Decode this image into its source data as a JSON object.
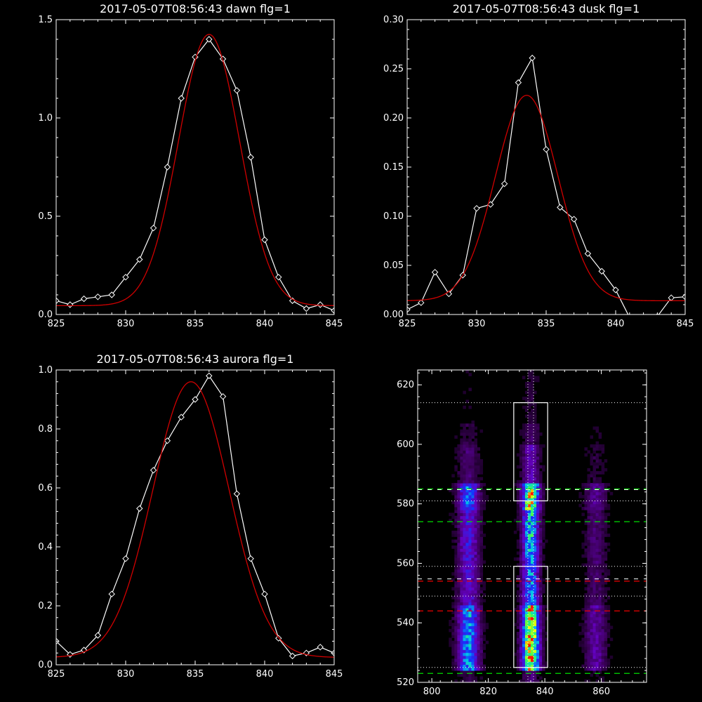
{
  "chart_data": [
    {
      "type": "line",
      "title": "2017-05-07T08:56:43 dawn flg=1",
      "xlim": [
        825,
        845
      ],
      "ylim": [
        0,
        1.5
      ],
      "xticks": [
        825,
        830,
        835,
        840,
        845
      ],
      "xtick_labels": [
        "825",
        "830",
        "835",
        "840",
        "845"
      ],
      "yticks": [
        0,
        0.5,
        1.0,
        1.5
      ],
      "ytick_labels": [
        "0.0",
        "0.5",
        "1.0",
        "1.5"
      ],
      "grid": false,
      "series": [
        {
          "color": "#ffffff",
          "marker": "diamond",
          "x": [
            825,
            826,
            827,
            828,
            829,
            830,
            831,
            832,
            833,
            834,
            835,
            836,
            837,
            838,
            839,
            840,
            841,
            842,
            843,
            844,
            845
          ],
          "y": [
            0.07,
            0.05,
            0.08,
            0.09,
            0.1,
            0.19,
            0.28,
            0.44,
            0.75,
            1.1,
            1.31,
            1.4,
            1.3,
            1.14,
            0.8,
            0.38,
            0.19,
            0.07,
            0.03,
            0.05,
            0.02
          ]
        },
        {
          "color": "#d00000",
          "style": "gaussian_fit",
          "amplitude": 1.38,
          "center": 836.0,
          "sigma": 2.2,
          "offset": 0.045
        }
      ]
    },
    {
      "type": "line",
      "title": "2017-05-07T08:56:43 dusk flg=1",
      "xlim": [
        825,
        845
      ],
      "ylim": [
        0,
        0.3
      ],
      "xticks": [
        825,
        830,
        835,
        840,
        845
      ],
      "xtick_labels": [
        "825",
        "830",
        "835",
        "840",
        "845"
      ],
      "yticks": [
        0,
        0.05,
        0.1,
        0.15,
        0.2,
        0.25,
        0.3
      ],
      "ytick_labels": [
        "0.00",
        "0.05",
        "0.10",
        "0.15",
        "0.20",
        "0.25",
        "0.30"
      ],
      "grid": false,
      "series": [
        {
          "color": "#ffffff",
          "marker": "diamond",
          "x": [
            825,
            826,
            827,
            828,
            829,
            830,
            831,
            832,
            833,
            834,
            835,
            836,
            837,
            838,
            839,
            840,
            841,
            842,
            843,
            844,
            845
          ],
          "y": [
            0.005,
            0.012,
            0.043,
            0.021,
            0.04,
            0.108,
            0.112,
            0.133,
            0.236,
            0.261,
            0.168,
            0.109,
            0.097,
            0.062,
            0.044,
            0.025,
            -0.003,
            -0.004,
            -0.002,
            0.017,
            0.018
          ]
        },
        {
          "color": "#d00000",
          "style": "gaussian_fit",
          "amplitude": 0.209,
          "center": 833.6,
          "sigma": 2.25,
          "offset": 0.014
        }
      ]
    },
    {
      "type": "line",
      "title": "2017-05-07T08:56:43 aurora flg=1",
      "xlim": [
        825,
        845
      ],
      "ylim": [
        0,
        1.0
      ],
      "xticks": [
        825,
        830,
        835,
        840,
        845
      ],
      "xtick_labels": [
        "825",
        "830",
        "835",
        "840",
        "845"
      ],
      "yticks": [
        0,
        0.2,
        0.4,
        0.6,
        0.8,
        1.0
      ],
      "ytick_labels": [
        "0.0",
        "0.2",
        "0.4",
        "0.6",
        "0.8",
        "1.0"
      ],
      "grid": false,
      "series": [
        {
          "color": "#ffffff",
          "marker": "diamond",
          "x": [
            825,
            826,
            827,
            828,
            829,
            830,
            831,
            832,
            833,
            834,
            835,
            836,
            837,
            838,
            839,
            840,
            841,
            842,
            843,
            844,
            845
          ],
          "y": [
            0.08,
            0.035,
            0.05,
            0.1,
            0.24,
            0.36,
            0.53,
            0.66,
            0.76,
            0.84,
            0.9,
            0.98,
            0.91,
            0.58,
            0.36,
            0.24,
            0.09,
            0.03,
            0.04,
            0.06,
            0.04
          ]
        },
        {
          "color": "#d00000",
          "style": "gaussian_fit",
          "amplitude": 0.935,
          "center": 834.7,
          "sigma": 2.75,
          "offset": 0.025
        }
      ]
    },
    {
      "type": "heatmap",
      "title": "",
      "xlim": [
        795,
        876
      ],
      "ylim": [
        520,
        625
      ],
      "xticks": [
        800,
        820,
        840,
        860
      ],
      "xtick_labels": [
        "800",
        "820",
        "840",
        "860"
      ],
      "yticks": [
        520,
        540,
        560,
        580,
        600,
        620
      ],
      "ytick_labels": [
        "520",
        "540",
        "560",
        "580",
        "600",
        "620"
      ],
      "colormap": "rainbow_on_black",
      "emission_columns": [
        {
          "center": 813,
          "width": 2.5,
          "strength": 0.55
        },
        {
          "center": 835,
          "width": 2.0,
          "strength": 1.0
        },
        {
          "center": 858,
          "width": 2.5,
          "strength": 0.22
        }
      ],
      "boxes": [
        {
          "x": [
            829,
            841
          ],
          "y": [
            525,
            559
          ]
        },
        {
          "x": [
            829,
            841
          ],
          "y": [
            581,
            614
          ]
        }
      ],
      "dotted_vertical_x": [
        834,
        836
      ],
      "dotted_horizontal_y": [
        614,
        581,
        559,
        549,
        525
      ],
      "green_dashed_y": [
        585,
        574,
        523
      ],
      "red_dashed_y": [
        554,
        544
      ],
      "white_dashed_y": [
        585,
        555
      ],
      "colors": {
        "box": "#ffffff",
        "green_line": "#00dd00",
        "red_line": "#ee0000"
      }
    }
  ]
}
